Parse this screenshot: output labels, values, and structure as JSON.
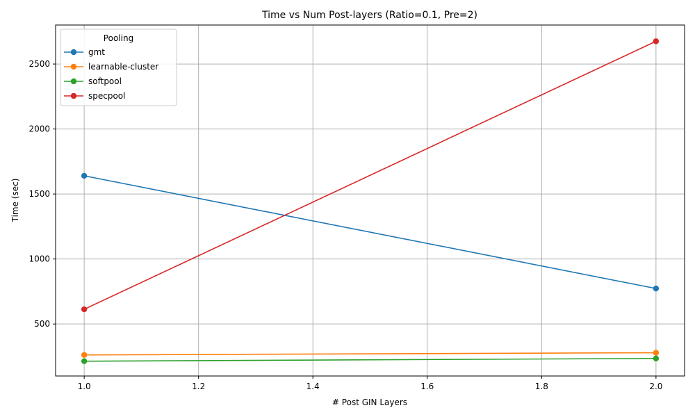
{
  "chart_data": {
    "type": "line",
    "title": "Time vs Num Post-layers (Ratio=0.1, Pre=2)",
    "xlabel": "# Post GIN Layers",
    "ylabel": "Time (sec)",
    "xlim": [
      0.95,
      2.05
    ],
    "ylim": [
      100,
      2800
    ],
    "xticks": [
      1.0,
      1.2,
      1.4,
      1.6,
      1.8,
      2.0
    ],
    "xtick_labels": [
      "1.0",
      "1.2",
      "1.4",
      "1.6",
      "1.8",
      "2.0"
    ],
    "yticks": [
      500,
      1000,
      1500,
      2000,
      2500
    ],
    "ytick_labels": [
      "500",
      "1000",
      "1500",
      "2000",
      "2500"
    ],
    "grid": true,
    "legend": {
      "title": "Pooling",
      "placement": "top-left"
    },
    "x": [
      1,
      2
    ],
    "series": [
      {
        "name": "gmt",
        "color": "#1f77b4",
        "values": [
          1640,
          773
        ]
      },
      {
        "name": "learnable-cluster",
        "color": "#ff7f0e",
        "values": [
          262,
          279
        ]
      },
      {
        "name": "softpool",
        "color": "#2ca02c",
        "values": [
          214,
          235
        ]
      },
      {
        "name": "specpool",
        "color": "#d62728",
        "values": [
          613,
          2675
        ]
      }
    ]
  }
}
